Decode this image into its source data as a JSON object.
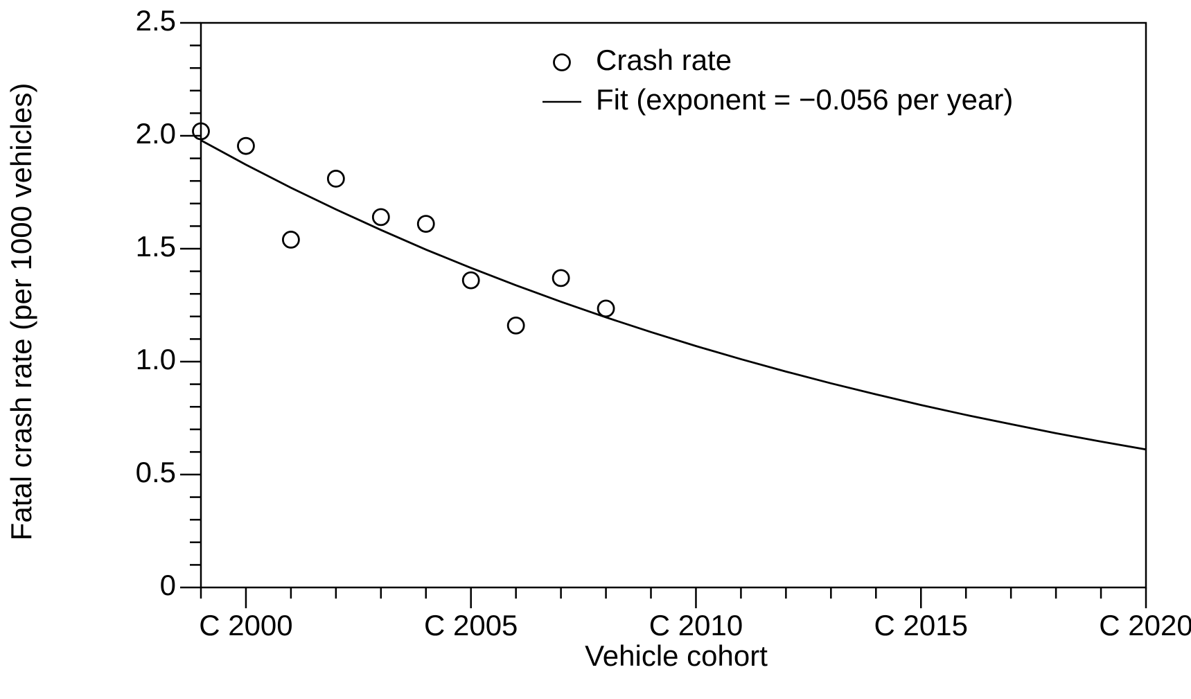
{
  "chart_data": {
    "type": "scatter",
    "x_label": "Vehicle cohort",
    "y_label": "Fatal crash rate (per 1000 vehicles)",
    "series": [
      {
        "name": "Crash rate",
        "type": "scatter",
        "color": "#000000",
        "x": [
          1999,
          2000,
          2001,
          2002,
          2003,
          2004,
          2005,
          2006,
          2007,
          2008
        ],
        "values": [
          2.02,
          1.955,
          1.54,
          1.81,
          1.64,
          1.61,
          1.36,
          1.16,
          1.37,
          1.235
        ]
      },
      {
        "name": "Fit (exponent = −0.056 per year)",
        "type": "line",
        "color": "#000000",
        "x": [
          1999,
          2000,
          2001,
          2002,
          2003,
          2004,
          2005,
          2006,
          2007,
          2008,
          2009,
          2010,
          2011,
          2012,
          2013,
          2014,
          2015,
          2016,
          2017,
          2018,
          2019,
          2020
        ],
        "values": [
          1.98,
          1.872,
          1.77,
          1.674,
          1.583,
          1.496,
          1.415,
          1.338,
          1.265,
          1.196,
          1.131,
          1.069,
          1.011,
          0.956,
          0.904,
          0.855,
          0.808,
          0.764,
          0.723,
          0.683,
          0.646,
          0.611
        ]
      }
    ],
    "xlim": [
      1999,
      2020
    ],
    "ylim": [
      0,
      2.5
    ],
    "xticks": [
      {
        "value": 2000,
        "label": "C 2000"
      },
      {
        "value": 2005,
        "label": "C 2005"
      },
      {
        "value": 2010,
        "label": "C 2010"
      },
      {
        "value": 2015,
        "label": "C 2015"
      },
      {
        "value": 2020,
        "label": "C 2020"
      }
    ],
    "yticks": [
      0,
      0.5,
      {
        "value": 1,
        "label": "1.0"
      },
      1.5,
      {
        "value": 2,
        "label": "2.0"
      },
      2.5
    ],
    "x_minor_ticks": [
      1999,
      2001,
      2002,
      2003,
      2004,
      2006,
      2007,
      2008,
      2009,
      2011,
      2012,
      2013,
      2014,
      2016,
      2017,
      2018,
      2019
    ],
    "y_minor_ticks": [
      0.1,
      0.2,
      0.3,
      0.4,
      0.6,
      0.7,
      0.8,
      0.9,
      1.1,
      1.2,
      1.3,
      1.4,
      1.6,
      1.7,
      1.8,
      1.9,
      2.1,
      2.2,
      2.3,
      2.4
    ],
    "legend": "top-center",
    "grid": false
  }
}
